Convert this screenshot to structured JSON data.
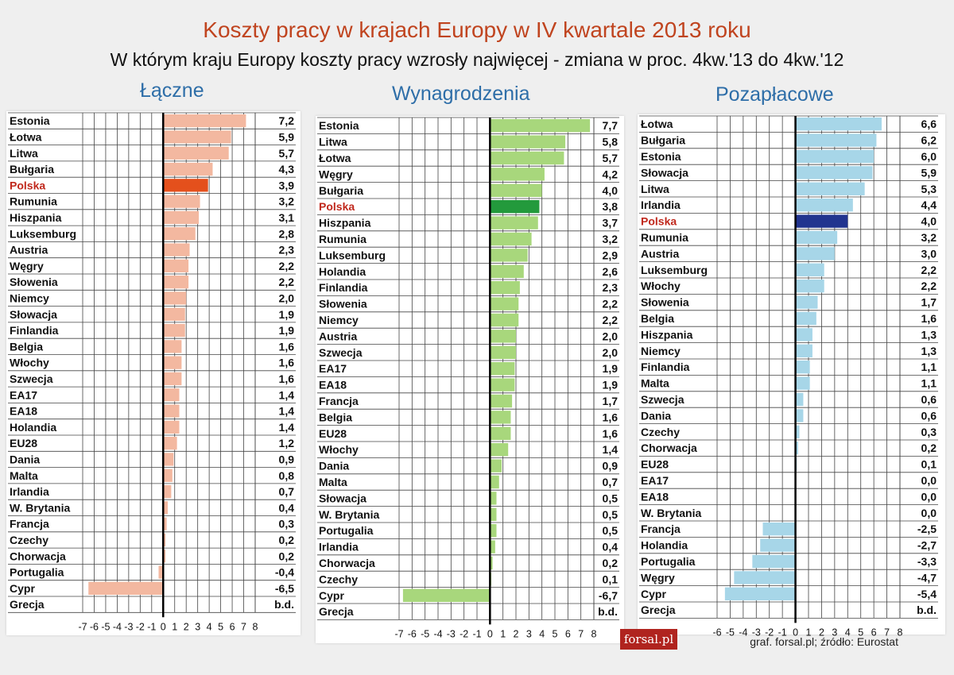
{
  "page": {
    "title": "Koszty pracy w krajach Europy w IV kwartale 2013 roku",
    "subtitle": "W którym kraju Europy koszty pracy wzrosły najwięcej - zmiana w proc. 4kw.'13 do 4kw.'12",
    "footer": "graf. forsal.pl;  źródło: Eurostat",
    "logo": "forsal.pl"
  },
  "chart_data": [
    {
      "type": "bar",
      "title": "Łączne",
      "highlight": "Polska",
      "colors": {
        "bar": "#f3b8a0",
        "highlight": "#e4501c"
      },
      "xlim": [
        -7,
        8
      ],
      "ticks": [
        "-7",
        "-6",
        "-5",
        "-4",
        "-3",
        "-2",
        "-1",
        "0",
        "1",
        "2",
        "3",
        "4",
        "5",
        "6",
        "7",
        "8"
      ],
      "categories": [
        "Estonia",
        "Łotwa",
        "Litwa",
        "Bułgaria",
        "Polska",
        "Rumunia",
        "Hiszpania",
        "Luksemburg",
        "Austria",
        "Węgry",
        "Słowenia",
        "Niemcy",
        "Słowacja",
        "Finlandia",
        "Belgia",
        "Włochy",
        "Szwecja",
        "EA17",
        "EA18",
        "Holandia",
        "EU28",
        "Dania",
        "Malta",
        "Irlandia",
        "W. Brytania",
        "Francja",
        "Czechy",
        "Chorwacja",
        "Portugalia",
        "Cypr",
        "Grecja"
      ],
      "values": [
        7.2,
        5.9,
        5.7,
        4.3,
        3.9,
        3.2,
        3.1,
        2.8,
        2.3,
        2.2,
        2.2,
        2.0,
        1.9,
        1.9,
        1.6,
        1.6,
        1.6,
        1.4,
        1.4,
        1.4,
        1.2,
        0.9,
        0.8,
        0.7,
        0.4,
        0.3,
        0.2,
        0.2,
        -0.4,
        -6.5,
        null
      ],
      "labels": [
        "7,2",
        "5,9",
        "5,7",
        "4,3",
        "3,9",
        "3,2",
        "3,1",
        "2,8",
        "2,3",
        "2,2",
        "2,2",
        "2,0",
        "1,9",
        "1,9",
        "1,6",
        "1,6",
        "1,6",
        "1,4",
        "1,4",
        "1,4",
        "1,2",
        "0,9",
        "0,8",
        "0,7",
        "0,4",
        "0,3",
        "0,2",
        "0,2",
        "-0,4",
        "-6,5",
        "b.d."
      ]
    },
    {
      "type": "bar",
      "title": "Wynagrodzenia",
      "highlight": "Polska",
      "colors": {
        "bar": "#a8d77c",
        "highlight": "#239a3c"
      },
      "xlim": [
        -7,
        8
      ],
      "ticks": [
        "-7",
        "-6",
        "-5",
        "-4",
        "-3",
        "-2",
        "-1",
        "0",
        "1",
        "2",
        "3",
        "4",
        "5",
        "6",
        "7",
        "8"
      ],
      "categories": [
        "Estonia",
        "Litwa",
        "Łotwa",
        "Węgry",
        "Bułgaria",
        "Polska",
        "Hiszpania",
        "Rumunia",
        "Luksemburg",
        "Holandia",
        "Finlandia",
        "Słowenia",
        "Niemcy",
        "Austria",
        "Szwecja",
        "EA17",
        "EA18",
        "Francja",
        "Belgia",
        "EU28",
        "Włochy",
        "Dania",
        "Malta",
        "Słowacja",
        "W. Brytania",
        "Portugalia",
        "Irlandia",
        "Chorwacja",
        "Czechy",
        "Cypr",
        "Grecja"
      ],
      "values": [
        7.7,
        5.8,
        5.7,
        4.2,
        4.0,
        3.8,
        3.7,
        3.2,
        2.9,
        2.6,
        2.3,
        2.2,
        2.2,
        2.0,
        2.0,
        1.9,
        1.9,
        1.7,
        1.6,
        1.6,
        1.4,
        0.9,
        0.7,
        0.5,
        0.5,
        0.5,
        0.4,
        0.2,
        0.1,
        -6.7,
        null
      ],
      "labels": [
        "7,7",
        "5,8",
        "5,7",
        "4,2",
        "4,0",
        "3,8",
        "3,7",
        "3,2",
        "2,9",
        "2,6",
        "2,3",
        "2,2",
        "2,2",
        "2,0",
        "2,0",
        "1,9",
        "1,9",
        "1,7",
        "1,6",
        "1,6",
        "1,4",
        "0,9",
        "0,7",
        "0,5",
        "0,5",
        "0,5",
        "0,4",
        "0,2",
        "0,1",
        "-6,7",
        "b.d."
      ]
    },
    {
      "type": "bar",
      "title": "Pozapłacowe",
      "highlight": "Polska",
      "colors": {
        "bar": "#a7d6e8",
        "highlight": "#22348f"
      },
      "xlim": [
        -6,
        8
      ],
      "ticks": [
        "-6",
        "-5",
        "-4",
        "-3",
        "-2",
        "-1",
        "0",
        "1",
        "2",
        "3",
        "4",
        "5",
        "6",
        "7",
        "8"
      ],
      "categories": [
        "Łotwa",
        "Bułgaria",
        "Estonia",
        "Słowacja",
        "Litwa",
        "Irlandia",
        "Polska",
        "Rumunia",
        "Austria",
        "Luksemburg",
        "Włochy",
        "Słowenia",
        "Belgia",
        "Hiszpania",
        "Niemcy",
        "Finlandia",
        "Malta",
        "Szwecja",
        "Dania",
        "Czechy",
        "Chorwacja",
        "EU28",
        "EA17",
        "EA18",
        "W. Brytania",
        "Francja",
        "Holandia",
        "Portugalia",
        "Węgry",
        "Cypr",
        "Grecja"
      ],
      "values": [
        6.6,
        6.2,
        6.0,
        5.9,
        5.3,
        4.4,
        4.0,
        3.2,
        3.0,
        2.2,
        2.2,
        1.7,
        1.6,
        1.3,
        1.3,
        1.1,
        1.1,
        0.6,
        0.6,
        0.3,
        0.2,
        0.1,
        0.0,
        0.0,
        0.0,
        -2.5,
        -2.7,
        -3.3,
        -4.7,
        -5.4,
        null
      ],
      "labels": [
        "6,6",
        "6,2",
        "6,0",
        "5,9",
        "5,3",
        "4,4",
        "4,0",
        "3,2",
        "3,0",
        "2,2",
        "2,2",
        "1,7",
        "1,6",
        "1,3",
        "1,3",
        "1,1",
        "1,1",
        "0,6",
        "0,6",
        "0,3",
        "0,2",
        "0,1",
        "0,0",
        "0,0",
        "0,0",
        "-2,5",
        "-2,7",
        "-3,3",
        "-4,7",
        "-5,4",
        "b.d."
      ]
    }
  ]
}
